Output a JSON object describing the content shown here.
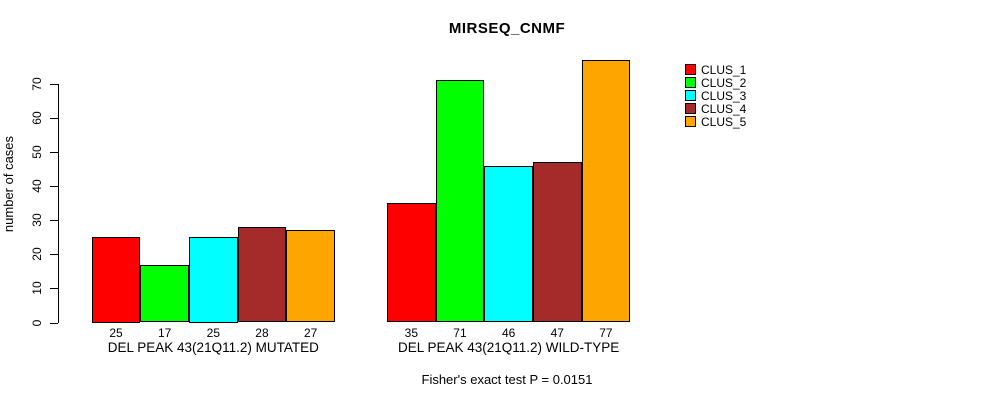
{
  "chart_data": {
    "type": "bar",
    "title": "MIRSEQ_CNMF",
    "ylabel": "number of cases",
    "xlabel": "",
    "categories": [
      "DEL PEAK 43(21Q11.2) MUTATED",
      "DEL PEAK 43(21Q11.2) WILD-TYPE"
    ],
    "series": [
      {
        "name": "CLUS_1",
        "color": "#FF0000",
        "values": [
          25,
          35
        ]
      },
      {
        "name": "CLUS_2",
        "color": "#00FF00",
        "values": [
          17,
          71
        ]
      },
      {
        "name": "CLUS_3",
        "color": "#00FFFF",
        "values": [
          25,
          46
        ]
      },
      {
        "name": "CLUS_4",
        "color": "#A52A2A",
        "values": [
          28,
          47
        ]
      },
      {
        "name": "CLUS_5",
        "color": "#FFA500",
        "values": [
          27,
          77
        ]
      }
    ],
    "yticks": [
      0,
      10,
      20,
      30,
      40,
      50,
      60,
      70
    ],
    "ylim": [
      0,
      77
    ],
    "grid": false,
    "bar_value_labels": true,
    "legend_position": "top-right-outside",
    "annotation": "Fisher's exact test P = 0.0151"
  },
  "colors": {
    "background": "#FFFFFF",
    "axis": "#000000",
    "bar_border": "#000000",
    "text": "#000000"
  }
}
